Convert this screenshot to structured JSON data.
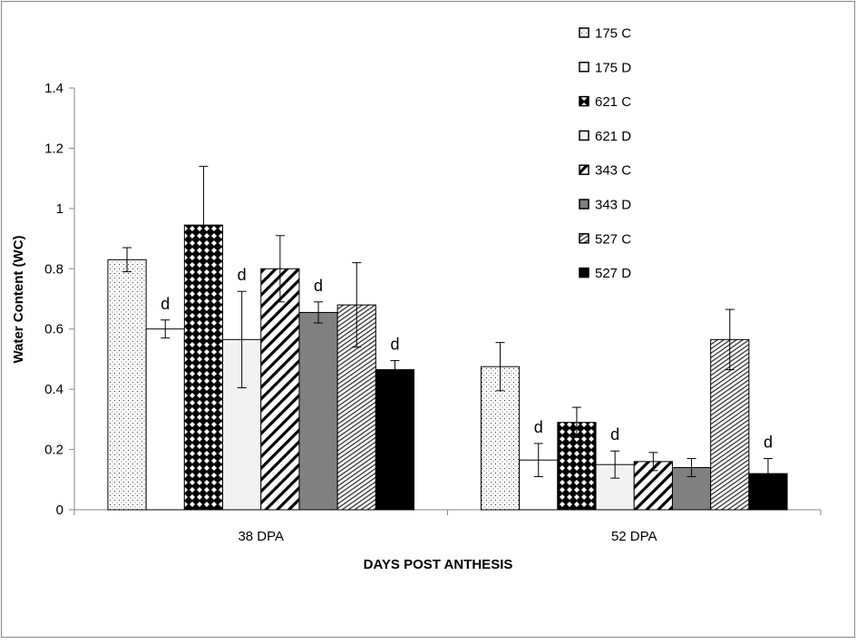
{
  "chart_data": {
    "type": "bar",
    "title": "",
    "xlabel": "DAYS POST ANTHESIS",
    "ylabel": "Water Content (WC)",
    "ylim": [
      0,
      1.4
    ],
    "yticks": [
      "0",
      "0.2",
      "0.4",
      "0.6",
      "0.8",
      "1",
      "1.2",
      "1.4"
    ],
    "yticks_values": [
      0,
      0.2,
      0.4,
      0.6,
      0.8,
      1.0,
      1.2,
      1.4
    ],
    "categories": [
      "38 DPA",
      "52 DPA"
    ],
    "grid": false,
    "legend_position": "top-right",
    "significance_marker": "d",
    "series": [
      {
        "name": "175 C",
        "pattern": "dots-sparse",
        "values": [
          0.83,
          0.475
        ],
        "errors": [
          0.04,
          0.08
        ],
        "marks": [
          "",
          ""
        ]
      },
      {
        "name": "175 D",
        "pattern": "white",
        "values": [
          0.6,
          0.165
        ],
        "errors": [
          0.03,
          0.055
        ],
        "marks": [
          "d",
          "d"
        ]
      },
      {
        "name": "621 C",
        "pattern": "checker-diamond",
        "values": [
          0.945,
          0.29
        ],
        "errors": [
          0.195,
          0.05
        ],
        "marks": [
          "",
          ""
        ]
      },
      {
        "name": "621 D",
        "pattern": "light-gray",
        "values": [
          0.565,
          0.15
        ],
        "errors": [
          0.16,
          0.045
        ],
        "marks": [
          "d",
          "d"
        ]
      },
      {
        "name": "343 C",
        "pattern": "wide-diagonal",
        "values": [
          0.8,
          0.16
        ],
        "errors": [
          0.11,
          0.03
        ],
        "marks": [
          "",
          ""
        ]
      },
      {
        "name": "343 D",
        "pattern": "gray",
        "values": [
          0.655,
          0.14
        ],
        "errors": [
          0.035,
          0.03
        ],
        "marks": [
          "d",
          ""
        ]
      },
      {
        "name": "527 C",
        "pattern": "dense-diagonal",
        "values": [
          0.68,
          0.565
        ],
        "errors": [
          0.14,
          0.1
        ],
        "marks": [
          "",
          ""
        ]
      },
      {
        "name": "527 D",
        "pattern": "black",
        "values": [
          0.465,
          0.12
        ],
        "errors": [
          0.03,
          0.05
        ],
        "marks": [
          "d",
          "d"
        ]
      }
    ],
    "colors": {
      "border": "#000000",
      "gray": "#808080",
      "light_gray": "#f2f2f2",
      "axis": "#868686",
      "frame": "#888888"
    }
  }
}
